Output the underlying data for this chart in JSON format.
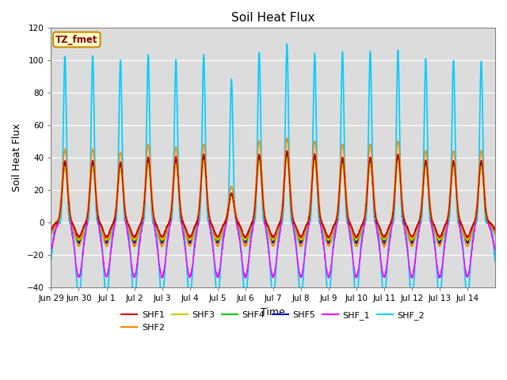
{
  "title": "Soil Heat Flux",
  "xlabel": "Time",
  "ylabel": "Soil Heat Flux",
  "ylim": [
    -40,
    120
  ],
  "annotation_text": "TZ_fmet",
  "annotation_bg": "#FFFFCC",
  "annotation_border": "#CC8800",
  "bg_color": "#DCDCDC",
  "series": {
    "SHF1": {
      "color": "#CC0000",
      "lw": 1.0
    },
    "SHF2": {
      "color": "#FF8800",
      "lw": 1.0
    },
    "SHF3": {
      "color": "#CCCC00",
      "lw": 1.0
    },
    "SHF4": {
      "color": "#00CC00",
      "lw": 1.0
    },
    "SHF5": {
      "color": "#0000CC",
      "lw": 1.0
    },
    "SHF_1": {
      "color": "#FF00FF",
      "lw": 1.0
    },
    "SHF_2": {
      "color": "#00CCFF",
      "lw": 1.2
    }
  },
  "tick_labels": [
    "Jun 29",
    "Jun 30",
    "Jul 1",
    "Jul 2",
    "Jul 3",
    "Jul 4",
    "Jul 5",
    "Jul 6",
    "Jul 7",
    "Jul 8",
    "Jul 9",
    "Jul 10",
    "Jul 11",
    "Jul 12",
    "Jul 13",
    "Jul 14"
  ],
  "n_days": 16,
  "yticks": [
    -40,
    -20,
    0,
    20,
    40,
    60,
    80,
    100,
    120
  ],
  "legend_order": [
    "SHF1",
    "SHF2",
    "SHF3",
    "SHF4",
    "SHF5",
    "SHF_1",
    "SHF_2"
  ]
}
